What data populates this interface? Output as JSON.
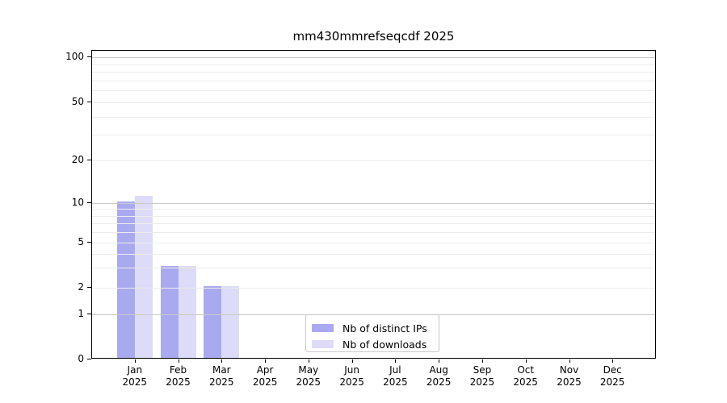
{
  "figure": {
    "background": "#ffffff"
  },
  "chart_data": {
    "type": "bar",
    "title": "mm430mmrefseqcdf 2025",
    "categories": [
      "Jan",
      "Feb",
      "Mar",
      "Apr",
      "May",
      "Jun",
      "Jul",
      "Aug",
      "Sep",
      "Oct",
      "Nov",
      "Dec"
    ],
    "category_year": "2025",
    "series": [
      {
        "name": "Nb of distinct IPs",
        "color": "#a9a9f0",
        "values": [
          10,
          3,
          2,
          0,
          0,
          0,
          0,
          0,
          0,
          0,
          0,
          0
        ]
      },
      {
        "name": "Nb of downloads",
        "color": "#dcdcf8",
        "values": [
          11,
          3,
          2,
          0,
          0,
          0,
          0,
          0,
          0,
          0,
          0,
          0
        ]
      }
    ],
    "y_axis": {
      "scale": "log-like",
      "ylim": [
        0,
        100
      ],
      "tick_labels": [
        0,
        1,
        2,
        5,
        10,
        20,
        50,
        100
      ],
      "major_gridlines": [
        1,
        10,
        100
      ],
      "minor_gridlines": [
        2,
        3,
        4,
        5,
        6,
        7,
        8,
        9,
        20,
        30,
        40,
        50,
        60,
        70,
        80,
        90
      ]
    },
    "legend": {
      "position": "bottom-center",
      "entries": [
        "Nb of distinct IPs",
        "Nb of downloads"
      ]
    },
    "grid": true,
    "colors": {
      "major_grid": "#c9c9c9",
      "minor_grid": "#ececec",
      "spine": "#000000",
      "text": "#000000"
    }
  }
}
